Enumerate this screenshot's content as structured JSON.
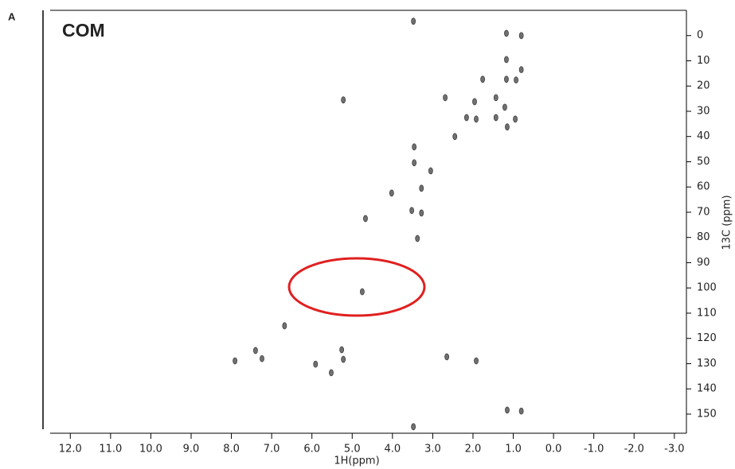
{
  "chart_data": {
    "type": "scatter",
    "panel_label": "A",
    "title": "COM",
    "xlabel": "1H(ppm)",
    "ylabel": "13C (ppm)",
    "x": [
      3.48,
      1.17,
      0.8,
      1.17,
      0.8,
      1.76,
      1.17,
      0.93,
      2.69,
      1.96,
      1.43,
      1.21,
      2.16,
      1.92,
      1.43,
      0.95,
      2.45,
      1.15,
      3.46,
      3.46,
      3.05,
      4.02,
      3.28,
      3.52,
      3.28,
      4.67,
      3.38,
      5.22,
      4.75,
      6.68,
      7.91,
      7.4,
      7.24,
      5.22,
      5.26,
      5.91,
      5.52,
      2.65,
      1.92,
      1.15,
      0.8,
      3.48
    ],
    "values": [
      -5.7,
      -0.9,
      0,
      9.5,
      13.5,
      17.3,
      17.3,
      17.6,
      24.6,
      26.2,
      24.6,
      28.4,
      32.5,
      33.1,
      32.5,
      33.1,
      40,
      36.2,
      44.1,
      50.4,
      53.6,
      62.4,
      60.5,
      69.3,
      70.3,
      72.5,
      80.4,
      25.5,
      101.5,
      115,
      128.9,
      124.8,
      128,
      128.3,
      124.5,
      130.2,
      133.6,
      127.3,
      128.9,
      148.4,
      148.8,
      155
    ],
    "color": "#404040",
    "xlim": [
      12.5,
      -3.3
    ],
    "ylim": [
      -10,
      156
    ],
    "xticks": [
      {
        "value": 12,
        "label": "12.0"
      },
      {
        "value": 11,
        "label": "11.0"
      },
      {
        "value": 10,
        "label": "10.0"
      },
      {
        "value": 9,
        "label": "9.0"
      },
      {
        "value": 8,
        "label": "8.0"
      },
      {
        "value": 7,
        "label": "7.0"
      },
      {
        "value": 6,
        "label": "6.0"
      },
      {
        "value": 5,
        "label": "5.0"
      },
      {
        "value": 4,
        "label": "4.0"
      },
      {
        "value": 3,
        "label": "3.0"
      },
      {
        "value": 2,
        "label": "2.0"
      },
      {
        "value": 1,
        "label": "1.0"
      },
      {
        "value": 0,
        "label": "0.0"
      },
      {
        "value": -1,
        "label": "-1.0"
      },
      {
        "value": -2,
        "label": "-2.0"
      },
      {
        "value": -3,
        "label": "-3.0"
      }
    ],
    "yticks": [
      0,
      10,
      20,
      30,
      40,
      50,
      60,
      70,
      80,
      90,
      100,
      110,
      120,
      130,
      140,
      150
    ]
  }
}
